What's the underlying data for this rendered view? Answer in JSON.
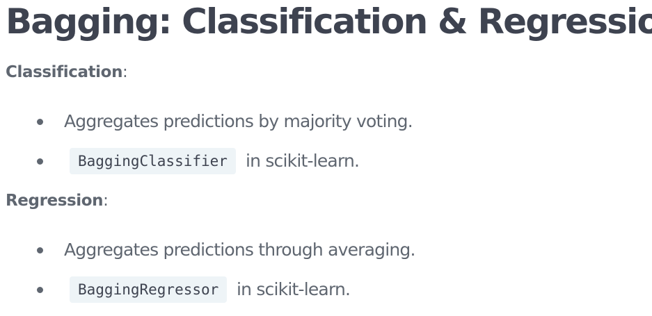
{
  "title": "Bagging: Classification & Regression",
  "sections": [
    {
      "heading": "Classification",
      "heading_suffix": ":",
      "bullets": [
        {
          "text": "Aggregates predictions by majority voting."
        },
        {
          "code": "BaggingClassifier",
          "text": "in scikit-learn."
        }
      ]
    },
    {
      "heading": "Regression",
      "heading_suffix": ":",
      "bullets": [
        {
          "text": "Aggregates predictions through averaging."
        },
        {
          "code": "BaggingRegressor",
          "text": "in scikit-learn."
        }
      ]
    }
  ]
}
